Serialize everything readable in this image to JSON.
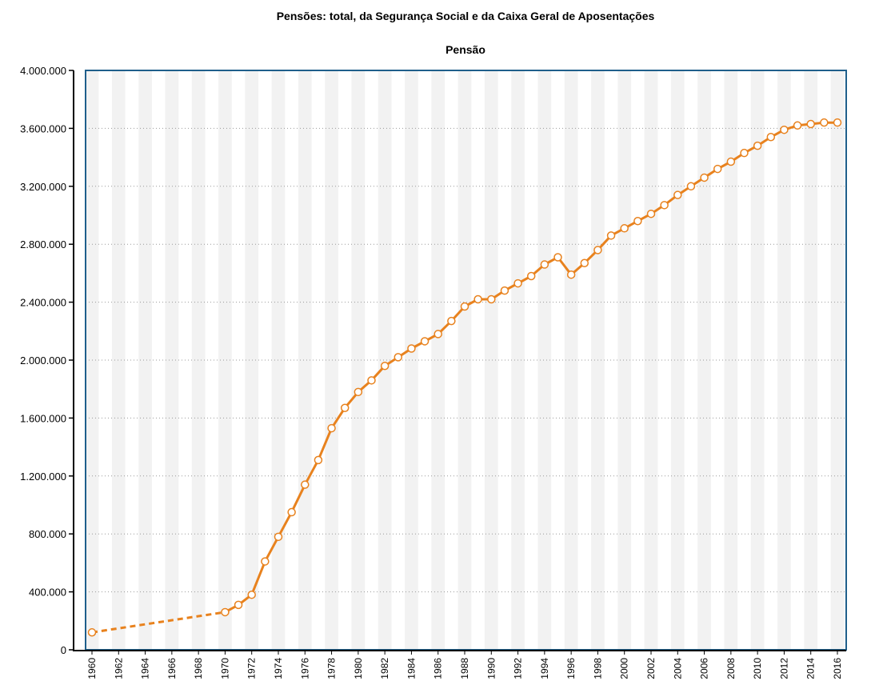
{
  "chart_data": {
    "type": "line",
    "title": "Pensões: total, da Segurança Social e da Caixa Geral de Aposentações",
    "subtitle": "Pensão",
    "xlabel": "",
    "ylabel": "",
    "xlim": [
      1960,
      2016
    ],
    "ylim": [
      0,
      4000000
    ],
    "yticks": [
      0,
      400000,
      800000,
      1200000,
      1600000,
      2000000,
      2400000,
      2800000,
      3200000,
      3600000,
      4000000
    ],
    "ytick_labels": [
      "0",
      "400.000",
      "800.000",
      "1.200.000",
      "1.600.000",
      "2.000.000",
      "2.400.000",
      "2.800.000",
      "3.200.000",
      "3.600.000",
      "4.000.000"
    ],
    "xticks": [
      1960,
      1962,
      1964,
      1966,
      1968,
      1970,
      1972,
      1974,
      1976,
      1978,
      1980,
      1982,
      1984,
      1986,
      1988,
      1990,
      1992,
      1994,
      1996,
      1998,
      2000,
      2002,
      2004,
      2006,
      2008,
      2010,
      2012,
      2014,
      2016
    ],
    "xtick_labels": [
      "1960",
      "1962",
      "1964",
      "1966",
      "1968",
      "1970",
      "1972",
      "1974",
      "1976",
      "1978",
      "1980",
      "1982",
      "1984",
      "1986",
      "1988",
      "1990",
      "1992",
      "1994",
      "1996",
      "1998",
      "2000",
      "2002",
      "2004",
      "2006",
      "2008",
      "2010",
      "2012",
      "2014",
      "2016"
    ],
    "grid": "horizontal-dotted",
    "gap_segment": {
      "from": 1960,
      "to": 1970,
      "style": "dashed"
    },
    "series": [
      {
        "name": "Pensão",
        "color": "#e8821e",
        "points": [
          {
            "x": 1960,
            "y": 120000
          },
          {
            "x": 1970,
            "y": 260000
          },
          {
            "x": 1971,
            "y": 310000
          },
          {
            "x": 1972,
            "y": 380000
          },
          {
            "x": 1973,
            "y": 610000
          },
          {
            "x": 1974,
            "y": 780000
          },
          {
            "x": 1975,
            "y": 950000
          },
          {
            "x": 1976,
            "y": 1140000
          },
          {
            "x": 1977,
            "y": 1310000
          },
          {
            "x": 1978,
            "y": 1530000
          },
          {
            "x": 1979,
            "y": 1670000
          },
          {
            "x": 1980,
            "y": 1780000
          },
          {
            "x": 1981,
            "y": 1860000
          },
          {
            "x": 1982,
            "y": 1960000
          },
          {
            "x": 1983,
            "y": 2020000
          },
          {
            "x": 1984,
            "y": 2080000
          },
          {
            "x": 1985,
            "y": 2130000
          },
          {
            "x": 1986,
            "y": 2180000
          },
          {
            "x": 1987,
            "y": 2270000
          },
          {
            "x": 1988,
            "y": 2370000
          },
          {
            "x": 1989,
            "y": 2420000
          },
          {
            "x": 1990,
            "y": 2420000
          },
          {
            "x": 1991,
            "y": 2480000
          },
          {
            "x": 1992,
            "y": 2530000
          },
          {
            "x": 1993,
            "y": 2580000
          },
          {
            "x": 1994,
            "y": 2660000
          },
          {
            "x": 1995,
            "y": 2710000
          },
          {
            "x": 1996,
            "y": 2590000
          },
          {
            "x": 1997,
            "y": 2670000
          },
          {
            "x": 1998,
            "y": 2760000
          },
          {
            "x": 1999,
            "y": 2860000
          },
          {
            "x": 2000,
            "y": 2910000
          },
          {
            "x": 2001,
            "y": 2960000
          },
          {
            "x": 2002,
            "y": 3010000
          },
          {
            "x": 2003,
            "y": 3070000
          },
          {
            "x": 2004,
            "y": 3140000
          },
          {
            "x": 2005,
            "y": 3200000
          },
          {
            "x": 2006,
            "y": 3260000
          },
          {
            "x": 2007,
            "y": 3320000
          },
          {
            "x": 2008,
            "y": 3370000
          },
          {
            "x": 2009,
            "y": 3430000
          },
          {
            "x": 2010,
            "y": 3480000
          },
          {
            "x": 2011,
            "y": 3540000
          },
          {
            "x": 2012,
            "y": 3590000
          },
          {
            "x": 2013,
            "y": 3620000
          },
          {
            "x": 2014,
            "y": 3630000
          },
          {
            "x": 2015,
            "y": 3640000
          },
          {
            "x": 2016,
            "y": 3640000
          }
        ]
      }
    ]
  },
  "colors": {
    "series_line": "#e8821e",
    "marker_fill": "#ffffff",
    "plot_border": "#1f5f8b",
    "band": "#f2f2f2",
    "grid": "#999999",
    "axis": "#000000"
  }
}
